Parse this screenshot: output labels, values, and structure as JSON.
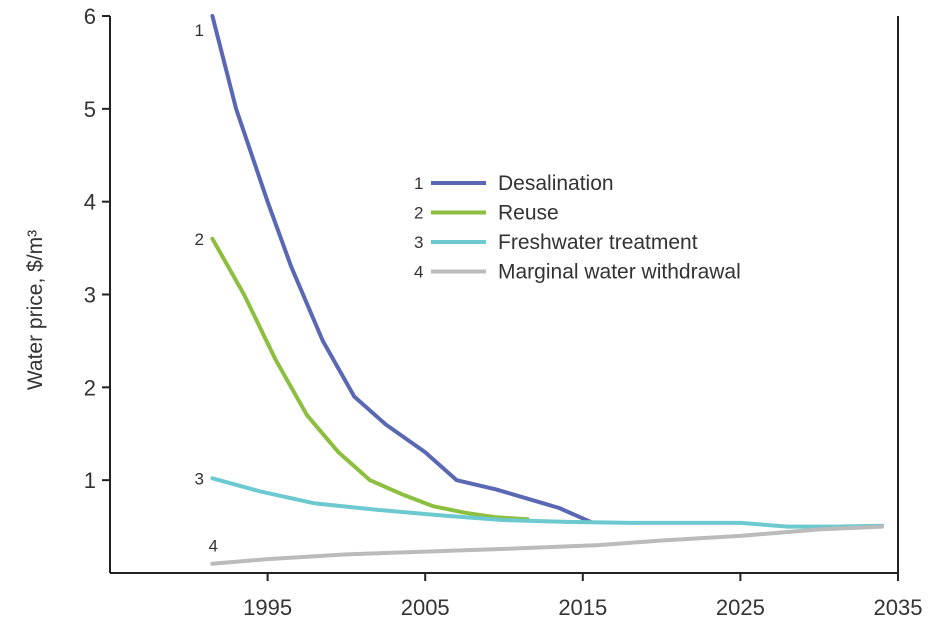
{
  "chart_data": {
    "type": "line",
    "title": "",
    "xlabel": "",
    "ylabel": "Water price, $/m³",
    "xlim": [
      1985,
      2035
    ],
    "ylim": [
      0,
      6
    ],
    "xticks": [
      1995,
      2005,
      2015,
      2025,
      2035
    ],
    "yticks": [
      1,
      2,
      3,
      4,
      5,
      6
    ],
    "grid": false,
    "legend_position": "upper-center",
    "series": [
      {
        "id": "1",
        "name": "Desalination",
        "color": "#5a68b3",
        "x": [
          1991.5,
          1993,
          1995,
          1996.5,
          1998.5,
          2000.5,
          2002.5,
          2005,
          2007,
          2009.5,
          2011.5,
          2013.5,
          2015.5
        ],
        "y": [
          6.0,
          5.0,
          4.0,
          3.3,
          2.5,
          1.9,
          1.6,
          1.3,
          1.0,
          0.9,
          0.8,
          0.7,
          0.55
        ]
      },
      {
        "id": "2",
        "name": "Reuse",
        "color": "#8cbf3f",
        "x": [
          1991.5,
          1993.5,
          1995.5,
          1997.5,
          1999.5,
          2001.5,
          2003.5,
          2005.5,
          2007.5,
          2009.5,
          2011.5
        ],
        "y": [
          3.6,
          3.0,
          2.3,
          1.7,
          1.3,
          1.0,
          0.85,
          0.72,
          0.65,
          0.6,
          0.58
        ]
      },
      {
        "id": "3",
        "name": "Freshwater treatment",
        "color": "#6cc9d0",
        "x": [
          1991.5,
          1994.5,
          1998,
          2002,
          2006,
          2010,
          2014,
          2018,
          2022,
          2025,
          2028,
          2031,
          2034
        ],
        "y": [
          1.02,
          0.88,
          0.75,
          0.68,
          0.62,
          0.57,
          0.55,
          0.54,
          0.54,
          0.54,
          0.5,
          0.5,
          0.51
        ]
      },
      {
        "id": "4",
        "name": "Marginal water withdrawal",
        "color": "#bbbbbb",
        "x": [
          1991.5,
          1995,
          2000,
          2005,
          2010,
          2016,
          2020,
          2025,
          2030,
          2034
        ],
        "y": [
          0.1,
          0.15,
          0.2,
          0.23,
          0.26,
          0.3,
          0.35,
          0.4,
          0.47,
          0.5
        ]
      }
    ]
  }
}
